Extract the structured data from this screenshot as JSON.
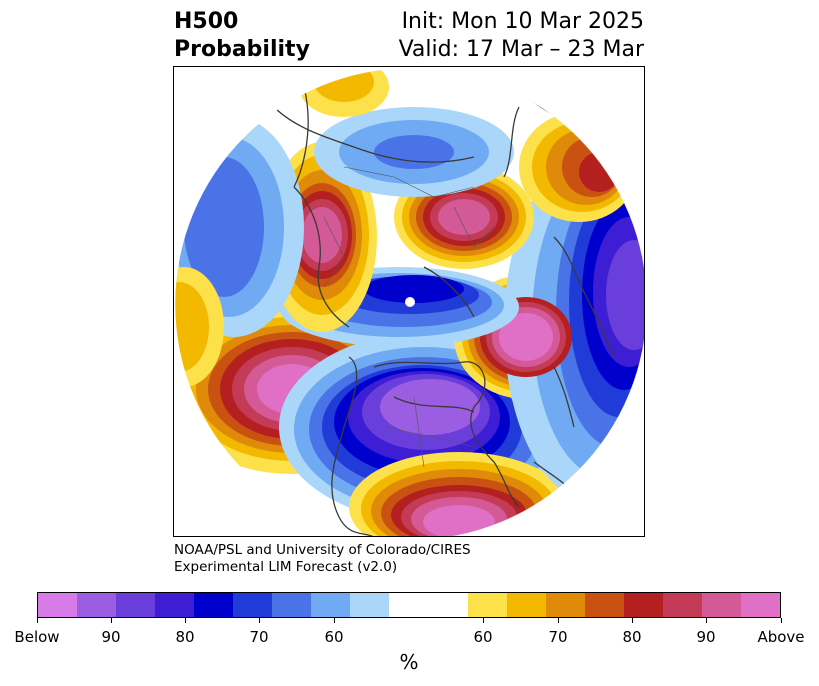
{
  "title": {
    "variable": "H500",
    "kind": "Probability",
    "init": "Init: Mon 10 Mar 2025",
    "valid": "Valid: 17 Mar – 23 Mar"
  },
  "credit": {
    "line1": "NOAA/PSL and University of Colorado/CIRES",
    "line2": "Experimental LIM Forecast (v2.0)"
  },
  "colorbar": {
    "colors": [
      "#d77be8",
      "#9b5ee3",
      "#6a3edb",
      "#3e1ed4",
      "#0000cc",
      "#213bd9",
      "#4a73e8",
      "#6faaf2",
      "#aad6fa",
      "#ffffff",
      "#fde14a",
      "#f3b800",
      "#e08a0a",
      "#c95212",
      "#b41f1f",
      "#c43b58",
      "#d35a96",
      "#e06fc6"
    ],
    "labels": [
      "Below",
      "90",
      "80",
      "70",
      "60",
      "60",
      "70",
      "80",
      "90",
      "Above"
    ],
    "unit": "%"
  },
  "map": {
    "projection": "north-polar-stereographic",
    "anomalies": [
      {
        "sign": "above",
        "region": "eastern North Pacific / West Coast",
        "peak": "Above"
      },
      {
        "sign": "above",
        "region": "North Atlantic",
        "peak": "Above"
      },
      {
        "sign": "above",
        "region": "Scandinavia / Northern Europe",
        "peak": "90"
      },
      {
        "sign": "above",
        "region": "Western Siberia",
        "peak": "90"
      },
      {
        "sign": "above",
        "region": "Eastern Asia",
        "peak": "80"
      },
      {
        "sign": "below",
        "region": "Central North America",
        "peak": "Below"
      },
      {
        "sign": "below",
        "region": "Western Europe / North Africa",
        "peak": "Below"
      },
      {
        "sign": "below",
        "region": "Arctic",
        "peak": "80"
      },
      {
        "sign": "below",
        "region": "Central Siberia",
        "peak": "70"
      }
    ]
  }
}
